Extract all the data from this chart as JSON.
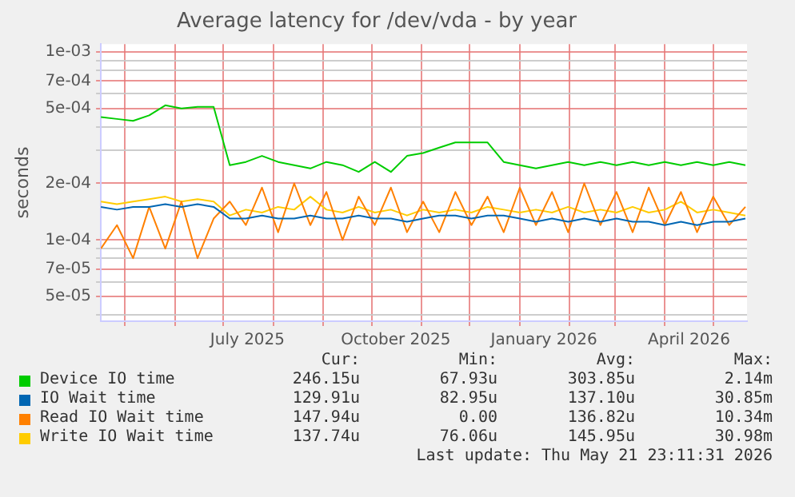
{
  "chart_data": {
    "type": "line",
    "title": "Average latency for /dev/vda - by year",
    "ylabel": "seconds",
    "log": "y",
    "grid": true,
    "legend": "bottom",
    "marker": "none",
    "x": [
      "2025-04-16",
      "2025-04-26",
      "2025-05-06",
      "2025-05-16",
      "2025-05-26",
      "2025-06-05",
      "2025-06-15",
      "2025-06-25",
      "2025-07-05",
      "2025-07-15",
      "2025-07-25",
      "2025-08-04",
      "2025-08-14",
      "2025-08-24",
      "2025-09-03",
      "2025-09-13",
      "2025-09-23",
      "2025-10-03",
      "2025-10-13",
      "2025-10-23",
      "2025-11-02",
      "2025-11-12",
      "2025-11-22",
      "2025-12-02",
      "2025-12-12",
      "2025-12-22",
      "2026-01-01",
      "2026-01-11",
      "2026-01-21",
      "2026-01-31",
      "2026-02-10",
      "2026-02-20",
      "2026-03-02",
      "2026-03-12",
      "2026-03-22",
      "2026-04-01",
      "2026-04-11",
      "2026-04-21",
      "2026-05-01",
      "2026-05-11",
      "2026-05-21"
    ],
    "series": [
      {
        "name": "Device IO time",
        "color": "#00cc00",
        "values": [
          0.00045,
          0.00044,
          0.00043,
          0.00046,
          0.00052,
          0.0005,
          0.00051,
          0.00051,
          0.00025,
          0.00026,
          0.00028,
          0.00026,
          0.00025,
          0.00024,
          0.00026,
          0.00025,
          0.00023,
          0.00026,
          0.00023,
          0.00028,
          0.00029,
          0.00031,
          0.00033,
          0.00033,
          0.00033,
          0.00026,
          0.00025,
          0.00024,
          0.00025,
          0.00026,
          0.00025,
          0.00026,
          0.00025,
          0.00026,
          0.00025,
          0.00026,
          0.00025,
          0.00026,
          0.00025,
          0.00026,
          0.00025
        ]
      },
      {
        "name": "IO Wait time",
        "color": "#0066b3",
        "values": [
          0.00015,
          0.000145,
          0.00015,
          0.00015,
          0.000155,
          0.00015,
          0.000155,
          0.00015,
          0.00013,
          0.00013,
          0.000135,
          0.00013,
          0.00013,
          0.000135,
          0.00013,
          0.00013,
          0.000135,
          0.00013,
          0.00013,
          0.000125,
          0.00013,
          0.000135,
          0.000135,
          0.00013,
          0.000135,
          0.000135,
          0.00013,
          0.000125,
          0.00013,
          0.000125,
          0.00013,
          0.000125,
          0.00013,
          0.000125,
          0.000125,
          0.00012,
          0.000125,
          0.00012,
          0.000125,
          0.000125,
          0.00013
        ]
      },
      {
        "name": "Read IO Wait time",
        "color": "#ff8000",
        "values": [
          9e-05,
          0.00012,
          8e-05,
          0.00015,
          9e-05,
          0.00016,
          8e-05,
          0.00013,
          0.00016,
          0.00012,
          0.00019,
          0.00011,
          0.0002,
          0.00012,
          0.00018,
          0.0001,
          0.00017,
          0.00012,
          0.00019,
          0.00011,
          0.00016,
          0.00011,
          0.00018,
          0.00012,
          0.00017,
          0.00011,
          0.00019,
          0.00012,
          0.00018,
          0.00011,
          0.0002,
          0.00012,
          0.00018,
          0.00011,
          0.00019,
          0.00012,
          0.00018,
          0.00011,
          0.00017,
          0.00012,
          0.00015
        ]
      },
      {
        "name": "Write IO Wait time",
        "color": "#ffcc00",
        "values": [
          0.00016,
          0.000155,
          0.00016,
          0.000165,
          0.00017,
          0.00016,
          0.000165,
          0.00016,
          0.000135,
          0.000145,
          0.00014,
          0.00015,
          0.000145,
          0.00017,
          0.000145,
          0.00014,
          0.00015,
          0.00014,
          0.000145,
          0.000135,
          0.000145,
          0.00014,
          0.000145,
          0.00014,
          0.00015,
          0.000145,
          0.00014,
          0.000145,
          0.00014,
          0.00015,
          0.00014,
          0.000145,
          0.00014,
          0.00015,
          0.00014,
          0.000145,
          0.00016,
          0.00014,
          0.000145,
          0.00014,
          0.000135
        ]
      }
    ],
    "xlim": [
      "2025-04-16",
      "2026-05-22"
    ],
    "xticks": [
      {
        "value": "2025-05-01",
        "label": null
      },
      {
        "value": "2025-06-01",
        "label": null
      },
      {
        "value": "2025-07-01",
        "label": null
      },
      {
        "value": "2025-07-16",
        "label": "July 2025"
      },
      {
        "value": "2025-08-01",
        "label": null
      },
      {
        "value": "2025-09-01",
        "label": null
      },
      {
        "value": "2025-10-01",
        "label": null
      },
      {
        "value": "2025-10-16",
        "label": "October 2025"
      },
      {
        "value": "2025-11-01",
        "label": null
      },
      {
        "value": "2025-12-01",
        "label": null
      },
      {
        "value": "2026-01-01",
        "label": null
      },
      {
        "value": "2026-01-16",
        "label": "January 2026"
      },
      {
        "value": "2026-02-01",
        "label": null
      },
      {
        "value": "2026-03-01",
        "label": null
      },
      {
        "value": "2026-04-01",
        "label": null
      },
      {
        "value": "2026-04-16",
        "label": "April 2026"
      },
      {
        "value": "2026-05-01",
        "label": null
      }
    ],
    "ylim": [
      3.7e-05,
      0.0011
    ],
    "yticks": [
      {
        "value": 0.001,
        "label": "1e-03"
      },
      {
        "value": 0.0009,
        "label": null
      },
      {
        "value": 0.0008,
        "label": null
      },
      {
        "value": 0.0007,
        "label": "7e-04"
      },
      {
        "value": 0.0006,
        "label": null
      },
      {
        "value": 0.0005,
        "label": "5e-04"
      },
      {
        "value": 0.0004,
        "label": null
      },
      {
        "value": 0.0003,
        "label": null
      },
      {
        "value": 0.0002,
        "label": "2e-04"
      },
      {
        "value": 0.0001,
        "label": "1e-04"
      },
      {
        "value": 9e-05,
        "label": null
      },
      {
        "value": 8e-05,
        "label": null
      },
      {
        "value": 7e-05,
        "label": "7e-05"
      },
      {
        "value": 6e-05,
        "label": null
      },
      {
        "value": 5e-05,
        "label": "5e-05"
      },
      {
        "value": 4e-05,
        "label": null
      }
    ],
    "annotations": [
      "Cur:",
      "Min:",
      "Avg:",
      "Max:",
      "246.15u",
      "67.93u",
      "303.85u",
      "2.14m",
      "129.91u",
      "82.95u",
      "137.10u",
      "30.85m",
      "147.94u",
      "0.00",
      "136.82u",
      "10.34m",
      "137.74u",
      "76.06u",
      "145.95u",
      "30.98m",
      "Last update: Thu May 21 23:11:31 2026"
    ]
  }
}
